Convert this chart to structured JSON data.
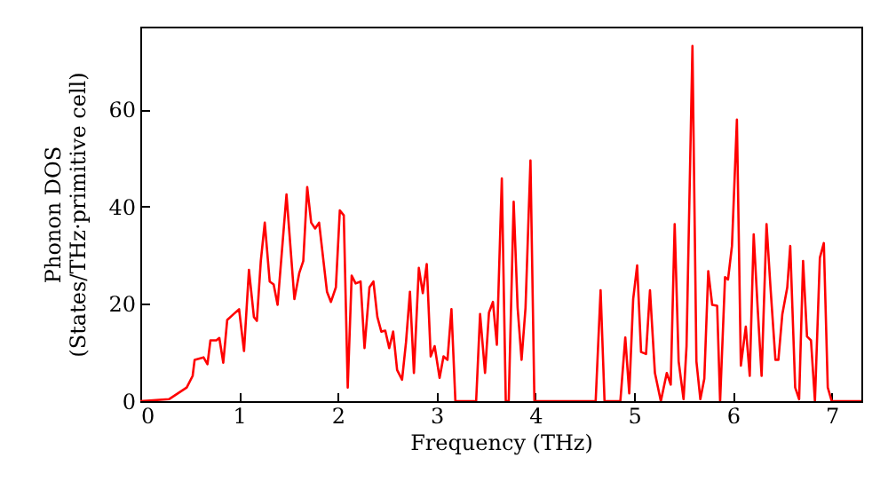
{
  "chart_data": {
    "type": "line",
    "xlabel": "Frequency (THz)",
    "ylabel": "Phonon DOS\n(States/THz·primitive cell)",
    "xlim": [
      0,
      7.3
    ],
    "ylim": [
      0,
      77
    ],
    "xticks": [
      0,
      1,
      2,
      3,
      4,
      5,
      6,
      7
    ],
    "yticks": [
      0,
      20,
      40,
      60
    ],
    "grid": false,
    "marker": "none",
    "line_style": "solid",
    "series": [
      {
        "color": "#ff0000",
        "x": [
          0,
          0.29,
          0.47,
          0.53,
          0.55,
          0.64,
          0.68,
          0.71,
          0.77,
          0.8,
          0.84,
          0.88,
          0.95,
          1.0,
          1.05,
          1.1,
          1.15,
          1.18,
          1.22,
          1.26,
          1.31,
          1.35,
          1.39,
          1.48,
          1.56,
          1.61,
          1.65,
          1.69,
          1.73,
          1.77,
          1.81,
          1.89,
          1.93,
          1.98,
          2.02,
          2.06,
          2.1,
          2.14,
          2.18,
          2.23,
          2.27,
          2.32,
          2.36,
          2.4,
          2.44,
          2.48,
          2.52,
          2.56,
          2.6,
          2.65,
          2.69,
          2.73,
          2.77,
          2.82,
          2.86,
          2.9,
          2.94,
          2.98,
          3.03,
          3.07,
          3.11,
          3.15,
          3.19,
          3.4,
          3.44,
          3.49,
          3.53,
          3.57,
          3.61,
          3.66,
          3.7,
          3.73,
          3.78,
          3.82,
          3.86,
          3.9,
          3.95,
          3.99,
          4.61,
          4.66,
          4.7,
          4.86,
          4.91,
          4.95,
          4.99,
          5.03,
          5.07,
          5.12,
          5.16,
          5.21,
          5.27,
          5.33,
          5.37,
          5.41,
          5.45,
          5.5,
          5.53,
          5.59,
          5.63,
          5.67,
          5.71,
          5.75,
          5.79,
          5.84,
          5.87,
          5.92,
          5.95,
          5.99,
          6.04,
          6.08,
          6.13,
          6.17,
          6.21,
          6.25,
          6.29,
          6.34,
          6.38,
          6.43,
          6.46,
          6.5,
          6.55,
          6.58,
          6.63,
          6.67,
          6.71,
          6.75,
          6.79,
          6.83,
          6.88,
          6.92,
          6.96,
          7.0,
          7.3
        ],
        "values": [
          0,
          0.4,
          2.8,
          5.2,
          8.5,
          9,
          7.6,
          12.5,
          12.5,
          13,
          7.9,
          16.7,
          18,
          18.9,
          10.3,
          27,
          17.3,
          16.5,
          28.8,
          36.7,
          24.6,
          24,
          19.8,
          42.5,
          21,
          26.4,
          28.8,
          44,
          36.7,
          35.5,
          36.7,
          22.5,
          20.4,
          23.4,
          39.2,
          38.2,
          2.8,
          25.8,
          24.2,
          24.6,
          10.9,
          23.4,
          24.6,
          17.3,
          14.3,
          14.5,
          10.9,
          14.3,
          6.4,
          4.4,
          12.1,
          22.5,
          5.8,
          27.4,
          22.2,
          28.2,
          9.2,
          11.3,
          4.8,
          9.2,
          8.5,
          18.9,
          0,
          0,
          17.9,
          5.8,
          18.2,
          20.4,
          11.6,
          45.8,
          0,
          0,
          41,
          19.2,
          8.5,
          19.2,
          49.5,
          0,
          0,
          22.8,
          0,
          0,
          13.1,
          1.6,
          21,
          27.9,
          10.1,
          9.7,
          22.8,
          5.8,
          0,
          5.8,
          3.4,
          36.4,
          8.2,
          0.4,
          11.3,
          73,
          8.2,
          0.4,
          4.6,
          26.7,
          19.8,
          19.6,
          0,
          25.5,
          25,
          31.9,
          57.9,
          7.3,
          15.3,
          5.2,
          34.3,
          19.2,
          5.2,
          36.4,
          23.4,
          8.5,
          8.5,
          17.9,
          23.4,
          31.9,
          2.8,
          0.4,
          28.8,
          13.3,
          12.5,
          0,
          29.5,
          32.5,
          2.8,
          0,
          0
        ]
      }
    ]
  }
}
